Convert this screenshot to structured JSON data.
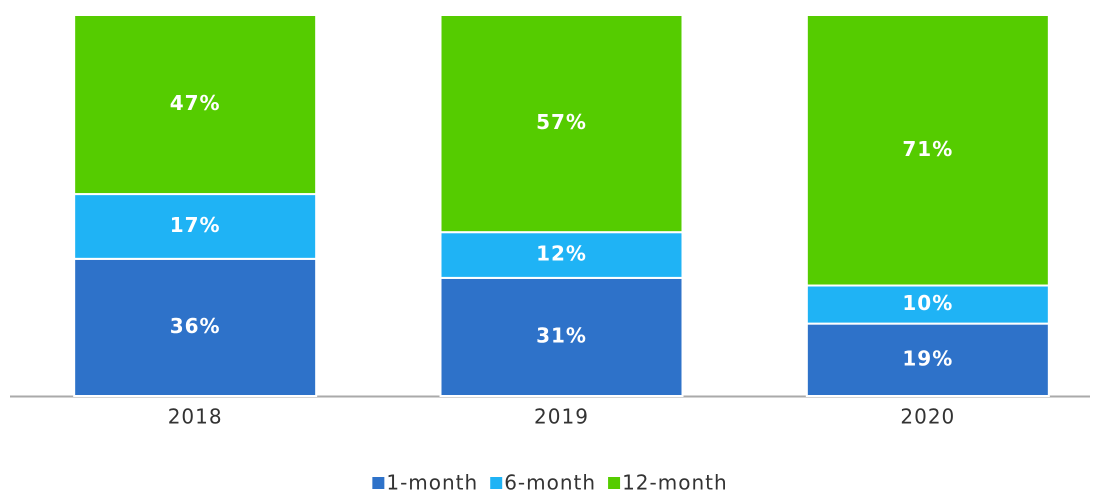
{
  "chart_data": {
    "type": "stacked_bar",
    "categories": [
      "2018",
      "2019",
      "2020"
    ],
    "series": [
      {
        "name": "1-month",
        "color": "#2e72c9",
        "values": [
          36,
          31,
          19
        ],
        "value_labels": [
          "36%",
          "31%",
          "19%"
        ]
      },
      {
        "name": "6-month",
        "color": "#1fb3f5",
        "values": [
          17,
          12,
          10
        ],
        "value_labels": [
          "17%",
          "12%",
          "10%"
        ]
      },
      {
        "name": "12-month",
        "color": "#55cc00",
        "values": [
          47,
          57,
          71
        ],
        "value_labels": [
          "47%",
          "57%",
          "71%"
        ]
      }
    ],
    "legend": "bottom"
  }
}
